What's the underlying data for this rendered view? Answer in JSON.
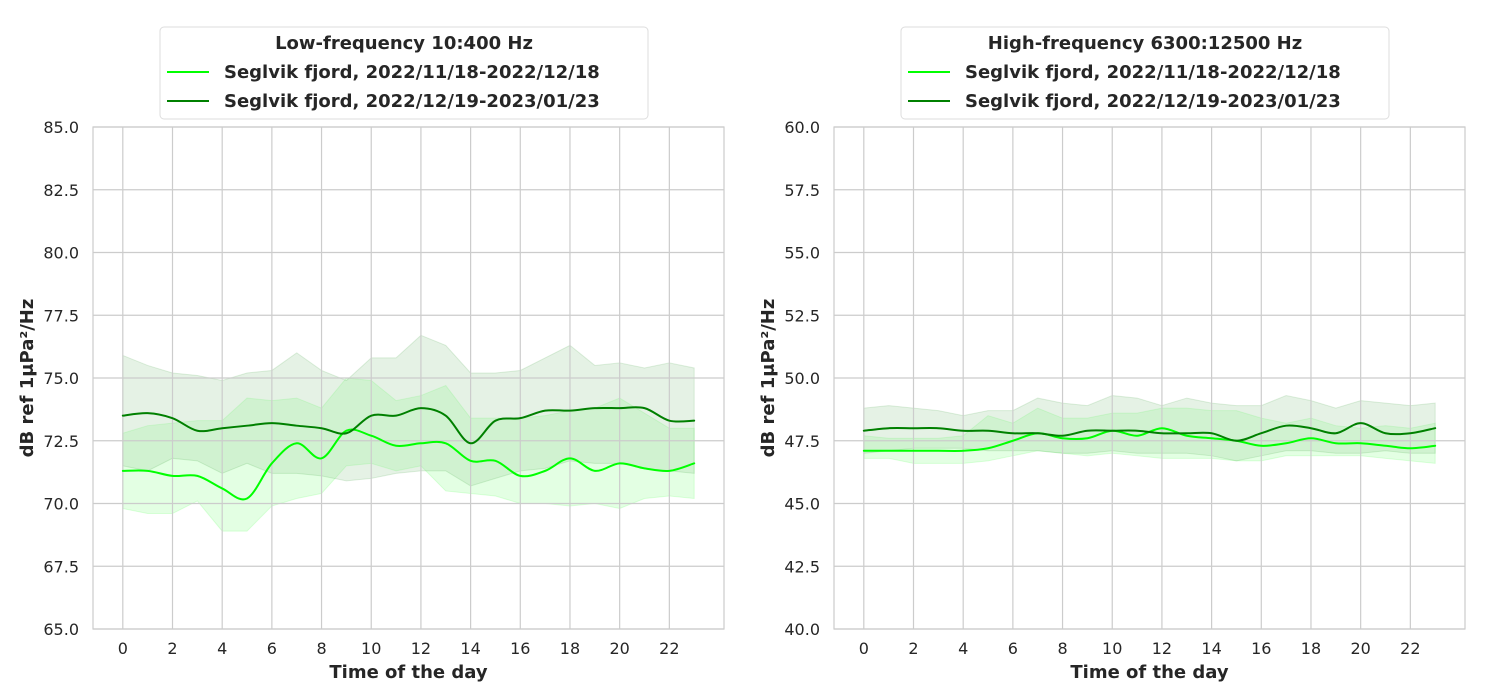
{
  "chart_data": [
    {
      "type": "line",
      "title": "Low-frequency 10:400 Hz",
      "xlabel": "Time of the day",
      "ylabel": "dB ref 1μPa²/Hz",
      "xlim": [
        -1.2,
        24.2
      ],
      "ylim": [
        65.0,
        85.0
      ],
      "xticks": [
        0,
        2,
        4,
        6,
        8,
        10,
        12,
        14,
        16,
        18,
        20,
        22
      ],
      "yticks": [
        65.0,
        67.5,
        70.0,
        72.5,
        75.0,
        77.5,
        80.0,
        82.5,
        85.0
      ],
      "ytick_labels": [
        "65.0",
        "67.5",
        "70.0",
        "72.5",
        "75.0",
        "77.5",
        "80.0",
        "82.5",
        "85.0"
      ],
      "grid": true,
      "legend_position": "top-center",
      "x": [
        0,
        1,
        2,
        3,
        4,
        5,
        6,
        7,
        8,
        9,
        10,
        11,
        12,
        13,
        14,
        15,
        16,
        17,
        18,
        19,
        20,
        21,
        22,
        23
      ],
      "series": [
        {
          "name": "Seglvik fjord, 2022/11/18-2022/12/18",
          "color": "#00ff00",
          "values": [
            71.3,
            71.3,
            71.1,
            71.1,
            70.6,
            70.2,
            71.6,
            72.4,
            71.8,
            72.9,
            72.7,
            72.3,
            72.4,
            72.4,
            71.7,
            71.7,
            71.1,
            71.3,
            71.8,
            71.3,
            71.6,
            71.4,
            71.3,
            71.6
          ],
          "lower": [
            69.8,
            69.6,
            69.6,
            70.1,
            68.9,
            68.9,
            69.9,
            70.2,
            70.4,
            71.5,
            71.6,
            71.3,
            71.5,
            70.5,
            70.4,
            70.3,
            70.0,
            70.0,
            69.9,
            70.0,
            69.8,
            70.2,
            70.3,
            70.2
          ],
          "upper": [
            72.8,
            73.1,
            73.2,
            73.3,
            73.3,
            74.2,
            74.1,
            74.2,
            73.8,
            75.0,
            74.9,
            74.1,
            74.3,
            74.7,
            73.4,
            73.4,
            73.4,
            73.5,
            73.7,
            73.8,
            74.2,
            73.6,
            73.0,
            73.0
          ]
        },
        {
          "name": "Seglvik fjord, 2022/12/19-2023/01/23",
          "color": "#008000",
          "values": [
            73.5,
            73.6,
            73.4,
            72.9,
            73.0,
            73.1,
            73.2,
            73.1,
            73.0,
            72.8,
            73.5,
            73.5,
            73.8,
            73.5,
            72.4,
            73.3,
            73.4,
            73.7,
            73.7,
            73.8,
            73.8,
            73.8,
            73.3,
            73.3
          ],
          "lower": [
            71.5,
            71.3,
            71.8,
            71.7,
            71.2,
            71.6,
            71.2,
            71.2,
            71.1,
            70.9,
            71.0,
            71.2,
            71.3,
            71.3,
            70.7,
            71.0,
            71.3,
            71.4,
            71.7,
            71.6,
            71.6,
            71.4,
            71.3,
            71.2
          ],
          "upper": [
            75.9,
            75.5,
            75.2,
            75.1,
            74.9,
            75.2,
            75.3,
            76.0,
            75.3,
            74.9,
            75.8,
            75.8,
            76.7,
            76.3,
            75.2,
            75.2,
            75.3,
            75.8,
            76.3,
            75.5,
            75.6,
            75.4,
            75.6,
            75.4
          ]
        }
      ]
    },
    {
      "type": "line",
      "title": "High-frequency 6300:12500 Hz",
      "xlabel": "Time of the day",
      "ylabel": "dB ref 1μPa²/Hz",
      "xlim": [
        -1.2,
        24.2
      ],
      "ylim": [
        40.0,
        60.0
      ],
      "xticks": [
        0,
        2,
        4,
        6,
        8,
        10,
        12,
        14,
        16,
        18,
        20,
        22
      ],
      "yticks": [
        40.0,
        42.5,
        45.0,
        47.5,
        50.0,
        52.5,
        55.0,
        57.5,
        60.0
      ],
      "ytick_labels": [
        "40.0",
        "42.5",
        "45.0",
        "47.5",
        "50.0",
        "52.5",
        "55.0",
        "57.5",
        "60.0"
      ],
      "grid": true,
      "legend_position": "top-center",
      "x": [
        0,
        1,
        2,
        3,
        4,
        5,
        6,
        7,
        8,
        9,
        10,
        11,
        12,
        13,
        14,
        15,
        16,
        17,
        18,
        19,
        20,
        21,
        22,
        23
      ],
      "series": [
        {
          "name": "Seglvik fjord, 2022/11/18-2022/12/18",
          "color": "#00ff00",
          "values": [
            47.1,
            47.1,
            47.1,
            47.1,
            47.1,
            47.2,
            47.5,
            47.8,
            47.6,
            47.6,
            47.9,
            47.7,
            48.0,
            47.7,
            47.6,
            47.5,
            47.3,
            47.4,
            47.6,
            47.4,
            47.4,
            47.3,
            47.2,
            47.3
          ],
          "lower": [
            46.8,
            46.8,
            46.6,
            46.6,
            46.6,
            46.7,
            46.9,
            47.1,
            47.0,
            46.9,
            47.0,
            46.9,
            46.8,
            46.8,
            46.8,
            46.7,
            46.7,
            46.9,
            46.9,
            46.9,
            46.9,
            46.8,
            46.7,
            46.6
          ],
          "upper": [
            47.7,
            47.6,
            47.6,
            47.6,
            47.7,
            48.5,
            48.2,
            48.8,
            48.4,
            48.4,
            48.6,
            48.6,
            48.8,
            48.8,
            48.7,
            48.7,
            48.4,
            48.2,
            48.4,
            48.1,
            48.0,
            48.1,
            48.0,
            48.2
          ]
        },
        {
          "name": "Seglvik fjord, 2022/12/19-2023/01/23",
          "color": "#008000",
          "values": [
            47.9,
            48.0,
            48.0,
            48.0,
            47.9,
            47.9,
            47.8,
            47.8,
            47.7,
            47.9,
            47.9,
            47.9,
            47.8,
            47.8,
            47.8,
            47.5,
            47.8,
            48.1,
            48.0,
            47.8,
            48.2,
            47.8,
            47.8,
            48.0
          ],
          "lower": [
            47.0,
            47.1,
            47.2,
            47.2,
            47.2,
            47.1,
            47.1,
            47.1,
            47.0,
            47.0,
            47.1,
            47.0,
            47.0,
            47.0,
            46.9,
            46.7,
            46.9,
            47.1,
            47.1,
            47.0,
            47.0,
            47.1,
            47.0,
            47.0
          ],
          "upper": [
            48.8,
            48.9,
            48.8,
            48.7,
            48.5,
            48.7,
            48.7,
            49.2,
            49.0,
            48.9,
            49.3,
            49.2,
            48.9,
            49.2,
            49.0,
            48.9,
            48.9,
            49.3,
            49.1,
            48.8,
            49.1,
            49.0,
            48.9,
            49.0
          ]
        }
      ]
    }
  ]
}
